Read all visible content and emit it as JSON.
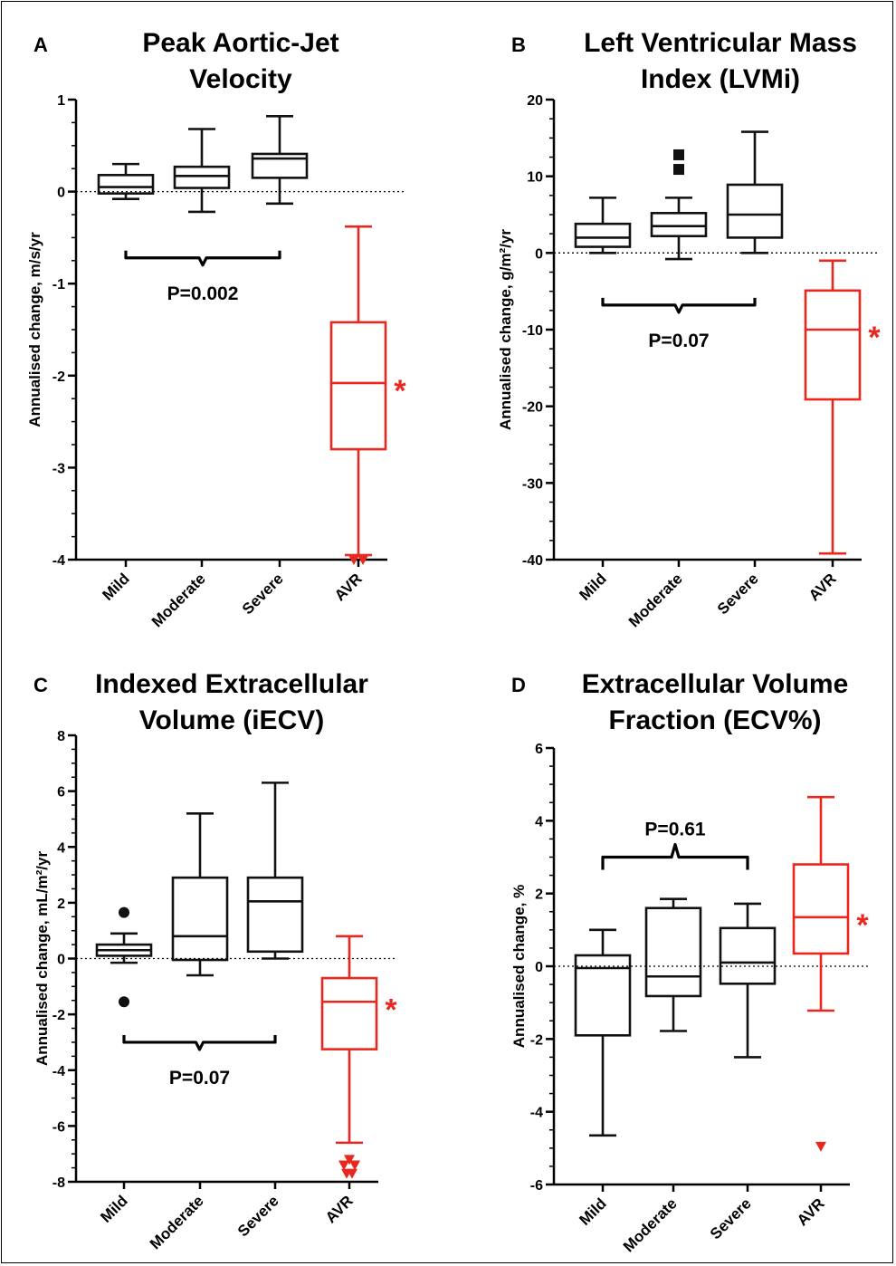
{
  "colors": {
    "control": "#111111",
    "avr": "#e8281e"
  },
  "chart_data": [
    {
      "type": "box",
      "panel_label": "A",
      "title_lines": [
        "Peak Aortic-Jet",
        "Velocity"
      ],
      "ylabel": "Annualised change, m/s/yr",
      "ylim": [
        -4,
        1
      ],
      "yticks": [
        1,
        0,
        -1,
        -2,
        -3,
        -4
      ],
      "categories": [
        "Mild",
        "Moderate",
        "Severe",
        "AVR"
      ],
      "boxes": [
        {
          "category": "Mild",
          "min": -0.08,
          "q1": -0.02,
          "median": 0.05,
          "q3": 0.18,
          "max": 0.3
        },
        {
          "category": "Moderate",
          "min": -0.22,
          "q1": 0.04,
          "median": 0.17,
          "q3": 0.27,
          "max": 0.68
        },
        {
          "category": "Severe",
          "min": -0.13,
          "q1": 0.15,
          "median": 0.36,
          "q3": 0.41,
          "max": 0.82
        },
        {
          "category": "AVR",
          "min": -3.95,
          "q1": -2.8,
          "median": -2.08,
          "q3": -1.42,
          "max": -0.38
        }
      ],
      "outliers": [
        {
          "category": "AVR",
          "y": -4.0,
          "marker": "triangle"
        },
        {
          "category": "AVR",
          "y": -4.0,
          "marker": "triangle"
        }
      ],
      "bracket": {
        "from": "Mild",
        "to": "Severe",
        "y": -0.72,
        "text": "P=0.002"
      },
      "avr_marker": "*"
    },
    {
      "type": "box",
      "panel_label": "B",
      "title_lines": [
        "Left Ventricular Mass",
        "Index (LVMi)"
      ],
      "ylabel": "Annualised change, g/m²/yr",
      "ylim": [
        -40,
        20
      ],
      "yticks": [
        20,
        10,
        0,
        -10,
        -20,
        -30,
        -40
      ],
      "categories": [
        "Mild",
        "Moderate",
        "Severe",
        "AVR"
      ],
      "boxes": [
        {
          "category": "Mild",
          "min": 0,
          "q1": 0.8,
          "median": 2.0,
          "q3": 3.8,
          "max": 7.2
        },
        {
          "category": "Moderate",
          "min": -0.8,
          "q1": 2.2,
          "median": 3.5,
          "q3": 5.2,
          "max": 7.2
        },
        {
          "category": "Severe",
          "min": 0,
          "q1": 2.0,
          "median": 5.0,
          "q3": 8.9,
          "max": 15.8
        },
        {
          "category": "AVR",
          "min": -39.2,
          "q1": -19.1,
          "median": -10.0,
          "q3": -4.9,
          "max": -1.0
        }
      ],
      "outliers": [
        {
          "category": "Moderate",
          "y": 10.9,
          "marker": "square"
        },
        {
          "category": "Moderate",
          "y": 12.8,
          "marker": "square"
        }
      ],
      "bracket": {
        "from": "Mild",
        "to": "Severe",
        "y": -6.8,
        "text": "P=0.07"
      },
      "avr_marker": "*"
    },
    {
      "type": "box",
      "panel_label": "C",
      "title_lines": [
        "Indexed Extracellular",
        "Volume (iECV)"
      ],
      "ylabel": "Annualised change, mL/m²/yr",
      "ylim": [
        -8,
        8
      ],
      "yticks": [
        8,
        6,
        4,
        2,
        0,
        -2,
        -4,
        -6,
        -8
      ],
      "categories": [
        "Mild",
        "Moderate",
        "Severe",
        "AVR"
      ],
      "boxes": [
        {
          "category": "Mild",
          "min": -0.15,
          "q1": 0.1,
          "median": 0.3,
          "q3": 0.5,
          "max": 0.9
        },
        {
          "category": "Moderate",
          "min": -0.6,
          "q1": -0.05,
          "median": 0.8,
          "q3": 2.9,
          "max": 5.2
        },
        {
          "category": "Severe",
          "min": 0,
          "q1": 0.25,
          "median": 2.05,
          "q3": 2.9,
          "max": 6.3
        },
        {
          "category": "AVR",
          "min": -6.6,
          "q1": -3.25,
          "median": -1.55,
          "q3": -0.7,
          "max": 0.8
        }
      ],
      "outliers": [
        {
          "category": "Mild",
          "y": 1.65,
          "marker": "circle"
        },
        {
          "category": "Mild",
          "y": -1.55,
          "marker": "circle"
        },
        {
          "category": "AVR",
          "y": -7.4,
          "marker": "triangle",
          "dx": -6
        },
        {
          "category": "AVR",
          "y": -7.2,
          "marker": "triangle",
          "dx": 0
        },
        {
          "category": "AVR",
          "y": -7.4,
          "marker": "triangle",
          "dx": 6
        },
        {
          "category": "AVR",
          "y": -7.7,
          "marker": "triangle",
          "dx": -3
        },
        {
          "category": "AVR",
          "y": -7.7,
          "marker": "triangle",
          "dx": 3
        }
      ],
      "bracket": {
        "from": "Mild",
        "to": "Severe",
        "y": -3.0,
        "text": "P=0.07"
      },
      "avr_marker": "*"
    },
    {
      "type": "box",
      "panel_label": "D",
      "title_lines": [
        "Extracellular Volume",
        "Fraction (ECV%)"
      ],
      "ylabel": "Annualised change, %",
      "ylim": [
        -6,
        6
      ],
      "yticks": [
        6,
        4,
        2,
        0,
        -2,
        -4,
        -6
      ],
      "categories": [
        "Mild",
        "Moderate",
        "Severe",
        "AVR"
      ],
      "boxes": [
        {
          "category": "Mild",
          "min": -4.65,
          "q1": -1.9,
          "median": -0.05,
          "q3": 0.3,
          "max": 1.0
        },
        {
          "category": "Moderate",
          "min": -1.78,
          "q1": -0.82,
          "median": -0.28,
          "q3": 1.6,
          "max": 1.85
        },
        {
          "category": "Severe",
          "min": -2.5,
          "q1": -0.48,
          "median": 0.1,
          "q3": 1.05,
          "max": 1.72
        },
        {
          "category": "AVR",
          "min": -1.22,
          "q1": 0.35,
          "median": 1.35,
          "q3": 2.8,
          "max": 4.65
        }
      ],
      "outliers": [
        {
          "category": "AVR",
          "y": -4.95,
          "marker": "triangle"
        }
      ],
      "bracket": {
        "from": "Mild",
        "to": "Severe",
        "y": 3.0,
        "text": "P=0.61",
        "up": true
      },
      "avr_marker": "*"
    }
  ]
}
